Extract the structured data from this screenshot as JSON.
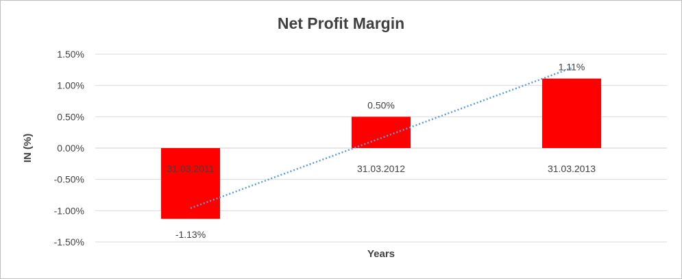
{
  "chart_data": {
    "type": "bar",
    "title": "Net Profit Margin",
    "xlabel": "Years",
    "ylabel": "IN (%)",
    "categories": [
      "31.03.2011",
      "31.03.2012",
      "31.03.2013"
    ],
    "series": [
      {
        "values": [
          -1.13,
          0.5,
          1.11
        ],
        "labels": [
          "-1.13%",
          "0.50%",
          "1.11%"
        ]
      }
    ],
    "trendline": "linear",
    "ylim": [
      -1.5,
      1.5
    ],
    "yticks": [
      "1.50%",
      "1.00%",
      "0.50%",
      "0.00%",
      "-0.50%",
      "-1.00%",
      "-1.50%"
    ],
    "ytick_values": [
      1.5,
      1.0,
      0.5,
      0.0,
      -0.5,
      -1.0,
      -1.5
    ],
    "grid": true,
    "legend": "none",
    "colors": {
      "bar": "#ff0000",
      "trend": "#5b9bd5",
      "grid": "#d9d9d9"
    }
  }
}
